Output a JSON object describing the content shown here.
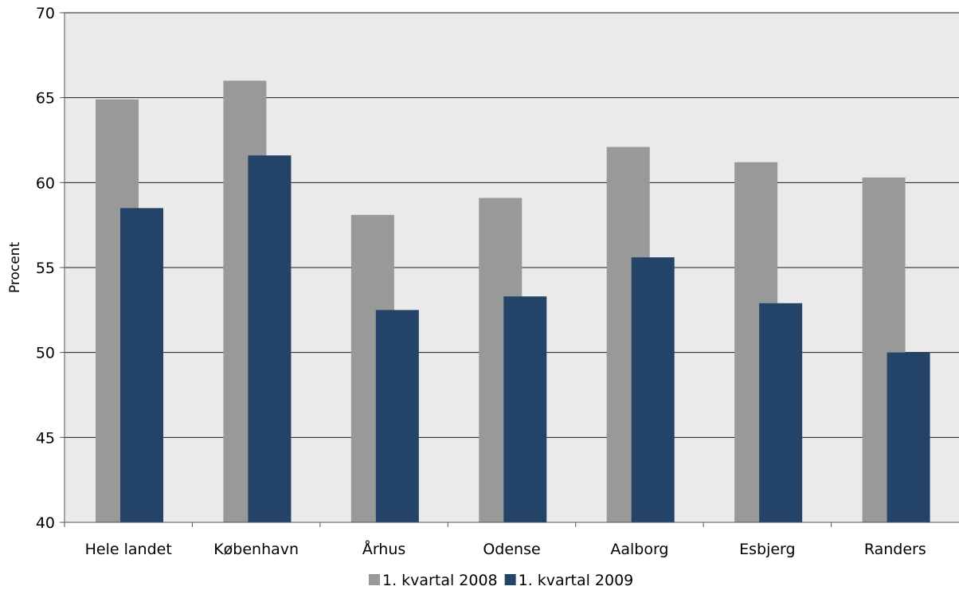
{
  "chart_data": {
    "type": "bar",
    "title": "",
    "xlabel": "",
    "ylabel": "Procent",
    "ylim": [
      40,
      70
    ],
    "yticks": [
      40,
      45,
      50,
      55,
      60,
      65,
      70
    ],
    "grid": true,
    "legend_position": "bottom",
    "categories": [
      "Hele landet",
      "København",
      "Århus",
      "Odense",
      "Aalborg",
      "Esbjerg",
      "Randers"
    ],
    "series": [
      {
        "name": "1. kvartal 2008",
        "color": "#999999",
        "values": [
          64.9,
          66.0,
          58.1,
          59.1,
          62.1,
          61.2,
          60.3
        ]
      },
      {
        "name": "1. kvartal 2009",
        "color": "#234468",
        "values": [
          58.5,
          61.6,
          52.5,
          53.3,
          55.6,
          52.9,
          50.0
        ]
      }
    ]
  }
}
